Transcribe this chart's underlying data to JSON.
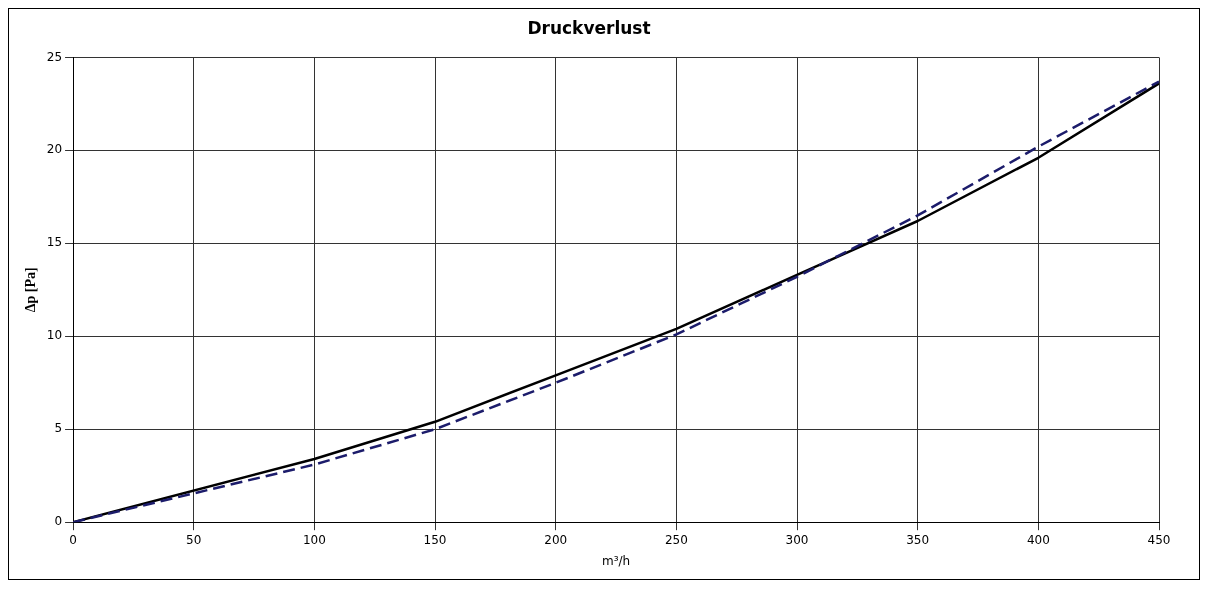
{
  "chart_data": {
    "type": "line",
    "title": "Druckverlust",
    "xlabel": "m³/h",
    "ylabel": "Δp [Pa]",
    "x": [
      0,
      100,
      150,
      200,
      250,
      300,
      350,
      400,
      450
    ],
    "series": [
      {
        "color": "#1c1c6b",
        "line_style": "dashed",
        "values": [
          0,
          3.1,
          5,
          7.5,
          10.1,
          13.2,
          16.5,
          20.2,
          23.7
        ]
      },
      {
        "color": "#000000",
        "line_style": "solid",
        "values": [
          0,
          3.4,
          5.4,
          7.9,
          10.4,
          13.3,
          16.2,
          19.6,
          23.6
        ]
      }
    ],
    "xlim": [
      0,
      450
    ],
    "xticks": [
      0,
      50,
      100,
      150,
      200,
      250,
      300,
      350,
      400,
      450
    ],
    "ylim": [
      0,
      25
    ],
    "yticks": [
      0,
      5,
      10,
      15,
      20,
      25
    ],
    "grid": true,
    "marker": "none"
  }
}
